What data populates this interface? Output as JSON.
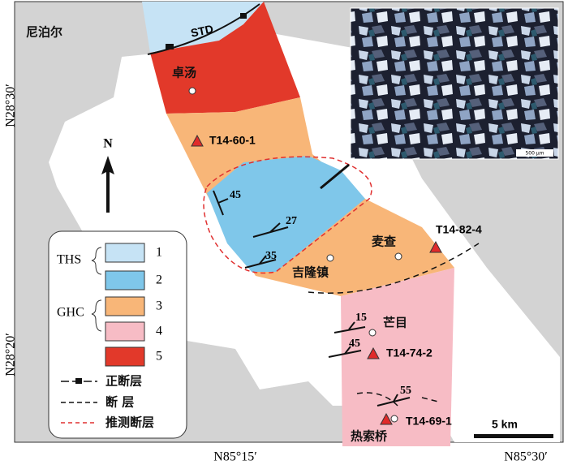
{
  "map": {
    "country_label": "尼泊尔",
    "fault_label": "STD",
    "north_label": "N",
    "places": [
      "卓汤",
      "吉隆镇",
      "麦查",
      "芒目",
      "热索桥"
    ],
    "samples": [
      "T14-60-1",
      "T14-82-4",
      "T14-74-2",
      "T14-69-1"
    ],
    "dips": [
      "45",
      "27",
      "35",
      "15",
      "45",
      "55"
    ],
    "lat_labels": [
      "N28°30′",
      "N28°20′"
    ],
    "lon_labels": [
      "N85°15′",
      "N85°30′"
    ],
    "scale_bar": "5 km",
    "micrograph_scale": "500 µm"
  },
  "legend": {
    "groups": [
      "THS",
      "GHC"
    ],
    "units": [
      "1",
      "2",
      "3",
      "4",
      "5"
    ],
    "lines": [
      "正断层",
      "断 层",
      "推测断层"
    ]
  }
}
